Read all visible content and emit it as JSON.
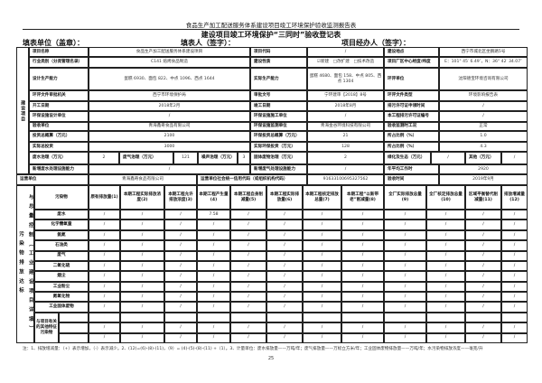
{
  "doc_title": "食品生产加工配送服务体系建设项目竣工环境保护验收监测报告表",
  "form_title": "建设项目竣工环境保护“三同时”验收登记表",
  "fill_unit": "填表单位（盖章）：",
  "fill_person": "填表人（签字）：",
  "handler": "项目经办人（签字）：",
  "section_project": "建设项目",
  "basic": {
    "rows": [
      [
        "项目名称",
        "食品生产加工配送服务体系建设项目",
        "项目代码",
        "/",
        "建设地点",
        "西宁市城北区坐鹏路5号"
      ],
      [
        "行业类别（分类管理名录）",
        "C141 焙烤食品制造",
        "建设性质",
        "☑新建　□改扩建　□技术改造",
        "项目厂区中心经度/纬度",
        "E：101° 45′ 6.49″，N：36° 42′ 34.07″"
      ],
      [
        "设计生产能力",
        "蛋糕 6930、面包 822、中点 1096、西点 1644",
        "实际生产能力",
        "蛋糕 4680、面包 158、中点 805、西点 1304",
        "环评单位",
        "沈阳德宝环境咨询有限公司"
      ],
      [
        "环评文件审批机关",
        "西宁市环境保护局",
        "审批文号",
        "宁环建审【2018】8号",
        "环评文件类型",
        "环境影响报告表"
      ],
      [
        "开工日期",
        "2018年2月",
        "竣工日期",
        "2018年8月",
        "排污许可证申领时间",
        "/"
      ],
      [
        "环保设施设计单位",
        "/",
        "环保设施施工单位",
        "/",
        "本工程排污许可证编号",
        "/"
      ],
      [
        "验收单位",
        "青海鑫奇食品有限公司",
        "环保设施监测单位",
        "青海金谷环境科技有限公司",
        "验收监测时工况",
        "正常"
      ],
      [
        "投资总概算（万元）",
        "2100",
        "环保投资总概算（万元）",
        "21",
        "所占比例（%）",
        "1.0"
      ],
      [
        "实际总投资",
        "3000",
        "实际环保投资（万元）",
        "128",
        "所占比例（%）",
        "4.3"
      ],
      [
        "废水治理（万元）",
        "2",
        "废气治理（万元）",
        "121",
        "噪声治理（万元）",
        "3",
        "固体废物治理（万元）",
        "2",
        "绿化及生态（万元）",
        "/",
        "其他（万元）",
        "/"
      ],
      [
        "新增废水处理设施能力",
        "/",
        "新增废气处理设施能力",
        "/",
        "年平均工作时",
        "2920"
      ],
      [
        "运营单位",
        "青海鑫奇食品有限公司",
        "运营单位社会统一信用代码（或组织机构代码）",
        "91633100695327562",
        "验收时间",
        "2019年9月"
      ]
    ]
  },
  "pollution": {
    "side_label_col1": "污染物排放达标",
    "side_label_col2": "与总量控制（工业建设项目详填）",
    "headers": [
      "污染物",
      "原有排放量(1)",
      "本期工程实际排放浓度(2)",
      "本期工程允许排放浓度(3)",
      "本期工程产生量(4)",
      "本期工程自身削减量(5)",
      "本期工程实际排放量(6)",
      "本期工程核定排放总量(7)",
      "本期工程“以新带老”削减量(8)",
      "全厂实际排放总量(9)",
      "全厂核定排放总量(10)",
      "区域平衡替代削减量(11)",
      "排放增减量(12)"
    ],
    "rows": [
      [
        "废水",
        "/",
        "/",
        "/",
        "7.58",
        "/",
        "/",
        "/",
        "/",
        "/",
        "/",
        "/",
        "/"
      ],
      [
        "化学需氧量",
        "/",
        "/",
        "/",
        "/",
        "/",
        "/",
        "/",
        "/",
        "/",
        "/",
        "/",
        "/"
      ],
      [
        "氨氮",
        "/",
        "/",
        "/",
        "/",
        "/",
        "/",
        "/",
        "/",
        "/",
        "/",
        "/",
        "/"
      ],
      [
        "石油类",
        "/",
        "/",
        "/",
        "/",
        "/",
        "/",
        "/",
        "/",
        "/",
        "/",
        "/",
        "/"
      ],
      [
        "废气",
        "/",
        "/",
        "/",
        "/",
        "/",
        "/",
        "/",
        "/",
        "/",
        "/",
        "/",
        "/"
      ],
      [
        "二氧化硫",
        "/",
        "/",
        "/",
        "/",
        "/",
        "/",
        "/",
        "/",
        "/",
        "/",
        "/",
        "/"
      ],
      [
        "烟尘",
        "/",
        "/",
        "/",
        "/",
        "/",
        "/",
        "/",
        "/",
        "/",
        "/",
        "/",
        "/"
      ],
      [
        "工业粉尘",
        "/",
        "/",
        "/",
        "/",
        "/",
        "/",
        "/",
        "/",
        "/",
        "/",
        "/",
        "/"
      ],
      [
        "氮氧化物",
        "/",
        "/",
        "/",
        "/",
        "/",
        "/",
        "/",
        "/",
        "/",
        "/",
        "/",
        "/"
      ],
      [
        "工业固体废物",
        "/",
        "/",
        "/",
        "/",
        "/",
        "/",
        "/",
        "/",
        "/",
        "/",
        "/",
        "/"
      ],
      [
        "",
        "",
        "",
        "",
        "",
        "",
        "",
        "",
        "",
        "",
        "",
        "",
        ""
      ],
      [
        "",
        "/",
        "/",
        "/",
        "/",
        "/",
        "/",
        "/",
        "/",
        "/",
        "/",
        "/",
        "/"
      ],
      [
        "",
        "/",
        "/",
        "/",
        "/",
        "/",
        "/",
        "/",
        "/",
        "/",
        "/",
        "/",
        "/"
      ]
    ],
    "other_label": "与项目有关的其他特征污染物"
  },
  "footnote": "注：1、排放增减量：（+）表示增加，（-）表示减少。2、(12)=(6)-(8)-(11)，（9）= (4)-(5)-(8)-(11) +（1）。3、计量单位：废水排放量——万吨/年；废气排放量——万标立方米/年；工业固体废物排放量——万吨/年；水污染物排放浓度——毫克/升",
  "page_number": "25"
}
